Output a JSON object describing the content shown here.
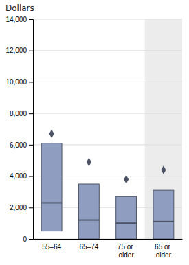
{
  "chart_data": {
    "type": "box",
    "title": "Dollars",
    "categories": [
      "55–64",
      "65–74",
      "75 or\nolder",
      "65 or\nolder"
    ],
    "q1": [
      500,
      0,
      0,
      0
    ],
    "median": [
      2300,
      1200,
      1000,
      1100
    ],
    "q3": [
      6100,
      3500,
      2700,
      3100
    ],
    "mean": [
      6700,
      4900,
      3800,
      4400
    ],
    "color": "#8f9dc0",
    "ylim": [
      0,
      14000
    ],
    "yticks": [
      0,
      {
        "value": 2000,
        "label": "2,000"
      },
      {
        "value": 4000,
        "label": "4,000"
      },
      {
        "value": 6000,
        "label": "6,000"
      },
      {
        "value": 8000,
        "label": "8,000"
      },
      {
        "value": 10000,
        "label": "10,000"
      },
      {
        "value": 12000,
        "label": "12,000"
      },
      {
        "value": 14000,
        "label": "14,000"
      }
    ],
    "grid": true
  }
}
